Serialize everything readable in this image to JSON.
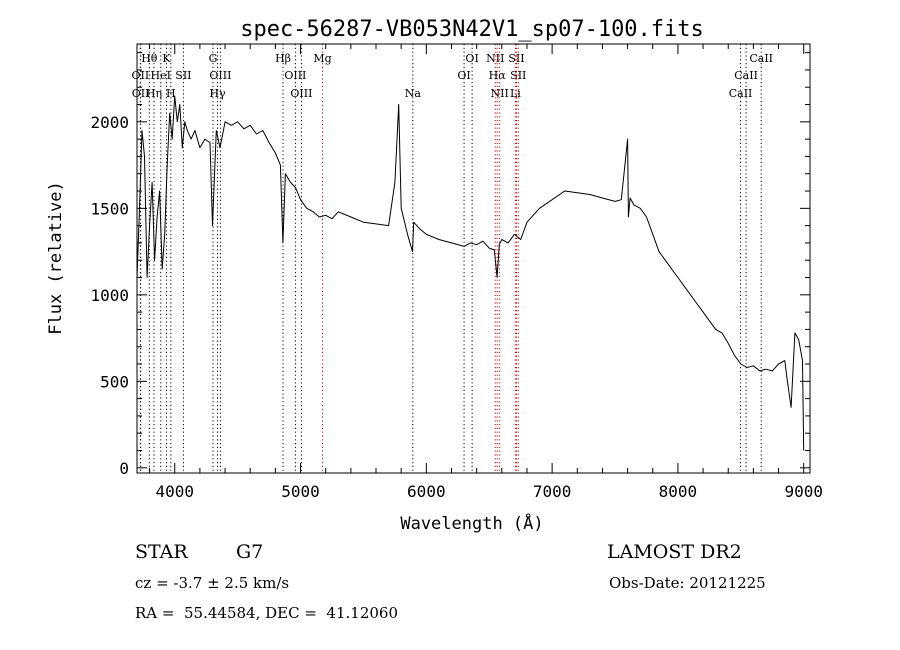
{
  "chart_data": {
    "type": "line",
    "title": "spec-56287-VB053N42V1_sp07-100.fits",
    "xlabel": "Wavelength (Å)",
    "ylabel": "Flux (relative)",
    "xlim": [
      3700,
      9050
    ],
    "ylim": [
      -30,
      2450
    ],
    "xticks": [
      4000,
      5000,
      6000,
      7000,
      8000,
      9000
    ],
    "yticks": [
      0,
      500,
      1000,
      1500,
      2000
    ],
    "grid": false,
    "series": [
      {
        "color": "#000000",
        "x": [
          3700,
          3720,
          3740,
          3760,
          3780,
          3800,
          3820,
          3840,
          3860,
          3880,
          3900,
          3920,
          3940,
          3960,
          3980,
          4000,
          4020,
          4040,
          4060,
          4080,
          4100,
          4130,
          4160,
          4200,
          4240,
          4280,
          4300,
          4330,
          4360,
          4400,
          4450,
          4500,
          4550,
          4600,
          4650,
          4700,
          4750,
          4800,
          4840,
          4860,
          4880,
          4920,
          4960,
          5000,
          5050,
          5100,
          5150,
          5200,
          5250,
          5300,
          5400,
          5500,
          5600,
          5700,
          5750,
          5780,
          5800,
          5850,
          5890,
          5900,
          5950,
          6000,
          6100,
          6200,
          6300,
          6350,
          6400,
          6450,
          6500,
          6540,
          6563,
          6580,
          6600,
          6650,
          6700,
          6750,
          6800,
          6900,
          7000,
          7100,
          7200,
          7300,
          7400,
          7500,
          7550,
          7600,
          7606,
          7620,
          7650,
          7700,
          7750,
          7800,
          7850,
          7900,
          7950,
          8000,
          8050,
          8100,
          8150,
          8200,
          8250,
          8300,
          8350,
          8400,
          8450,
          8500,
          8550,
          8600,
          8650,
          8700,
          8750,
          8800,
          8850,
          8870,
          8900,
          8930,
          8960,
          8990,
          9000
        ],
        "y": [
          1100,
          1500,
          1950,
          1800,
          1100,
          1400,
          1650,
          1200,
          1450,
          1600,
          1150,
          1350,
          1750,
          2050,
          1900,
          2150,
          2000,
          2100,
          1850,
          2000,
          1950,
          1900,
          1950,
          1850,
          1900,
          1880,
          1400,
          1950,
          1850,
          2000,
          1980,
          2000,
          1960,
          1980,
          1930,
          1950,
          1880,
          1820,
          1750,
          1300,
          1700,
          1650,
          1620,
          1550,
          1500,
          1480,
          1450,
          1460,
          1440,
          1480,
          1450,
          1420,
          1410,
          1400,
          1650,
          2100,
          1500,
          1350,
          1250,
          1420,
          1380,
          1350,
          1320,
          1300,
          1280,
          1300,
          1290,
          1310,
          1270,
          1260,
          1100,
          1290,
          1320,
          1300,
          1350,
          1320,
          1420,
          1500,
          1550,
          1600,
          1590,
          1580,
          1560,
          1540,
          1550,
          1900,
          1450,
          1560,
          1520,
          1500,
          1450,
          1350,
          1250,
          1200,
          1150,
          1100,
          1050,
          1000,
          950,
          900,
          850,
          800,
          780,
          720,
          650,
          600,
          580,
          590,
          560,
          570,
          560,
          600,
          620,
          500,
          350,
          780,
          740,
          620,
          100
        ]
      }
    ],
    "line_markers": [
      {
        "label": "Hθ",
        "x": 3798,
        "color": "#000000",
        "row": 1
      },
      {
        "label": "K",
        "x": 3934,
        "color": "#000000",
        "row": 1
      },
      {
        "label": "G",
        "x": 4304,
        "color": "#000000",
        "row": 1
      },
      {
        "label": "Hβ",
        "x": 4861,
        "color": "#000000",
        "row": 1
      },
      {
        "label": "Mg",
        "x": 5175,
        "color": "#c00000",
        "row": 1
      },
      {
        "label": "OI",
        "x": 6364,
        "color": "#000000",
        "row": 1
      },
      {
        "label": "NII",
        "x": 6548,
        "color": "#c00000",
        "row": 1
      },
      {
        "label": "SII",
        "x": 6717,
        "color": "#c00000",
        "row": 1
      },
      {
        "label": "CaII",
        "x": 8662,
        "color": "#000000",
        "row": 1
      },
      {
        "label": "OII",
        "x": 3727,
        "color": "#000000",
        "row": 2
      },
      {
        "label": "HeI",
        "x": 3889,
        "color": "#000000",
        "row": 2
      },
      {
        "label": "SII",
        "x": 4069,
        "color": "#000000",
        "row": 2
      },
      {
        "label": "OIII",
        "x": 4363,
        "color": "#000000",
        "row": 2
      },
      {
        "label": "OIII",
        "x": 4959,
        "color": "#000000",
        "row": 2
      },
      {
        "label": "OI",
        "x": 6300,
        "color": "#000000",
        "row": 2
      },
      {
        "label": "Hα",
        "x": 6563,
        "color": "#c00000",
        "row": 2
      },
      {
        "label": "SII",
        "x": 6731,
        "color": "#c00000",
        "row": 2
      },
      {
        "label": "CaII",
        "x": 8542,
        "color": "#000000",
        "row": 2
      },
      {
        "label": "OII",
        "x": 3729,
        "color": "#000000",
        "row": 3
      },
      {
        "label": "Hη",
        "x": 3835,
        "color": "#000000",
        "row": 3
      },
      {
        "label": "H",
        "x": 3969,
        "color": "#000000",
        "row": 3
      },
      {
        "label": "Hγ",
        "x": 4340,
        "color": "#000000",
        "row": 3
      },
      {
        "label": "OIII",
        "x": 5007,
        "color": "#000000",
        "row": 3
      },
      {
        "label": "Na",
        "x": 5893,
        "color": "#000000",
        "row": 3
      },
      {
        "label": "NII",
        "x": 6583,
        "color": "#c00000",
        "row": 3
      },
      {
        "label": "Li",
        "x": 6708,
        "color": "#c00000",
        "row": 3
      },
      {
        "label": "CaII",
        "x": 8498,
        "color": "#000000",
        "row": 3
      }
    ]
  },
  "info": {
    "class": "STAR",
    "subclass": "G7",
    "survey": "LAMOST DR2",
    "redshift": "cz = -3.7 ± 2.5 km/s",
    "obs_date": "Obs-Date: 20121225",
    "coords": "RA =  55.44584, DEC =  41.12060"
  }
}
